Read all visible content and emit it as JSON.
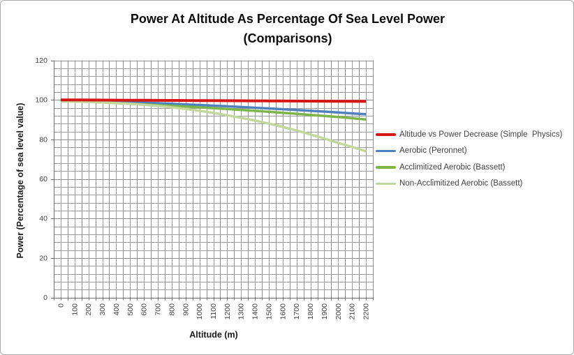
{
  "chart_data": {
    "type": "line",
    "title": "Power At Altitude As Percentage Of Sea Level Power",
    "subtitle": "(Comparisons)",
    "xlabel": "Altitude (m)",
    "ylabel": "Power (Percentage of sea level value)",
    "ylim": [
      0,
      120
    ],
    "y_major_ticks": [
      0,
      20,
      40,
      60,
      80,
      100,
      120
    ],
    "y_minor_unit": 4,
    "x_minor_per_category": 2,
    "grid": "both",
    "legend_position": "right",
    "gridline_color": "#9b9b9b",
    "gridline_major_color": "#8d8d8d",
    "axis_line_color": "#6f6f6f",
    "tick_text_color": "#3f3f3f",
    "categories": [
      "0",
      "100",
      "200",
      "300",
      "400",
      "500",
      "600",
      "700",
      "800",
      "900",
      "1000",
      "1100",
      "1200",
      "1300",
      "1400",
      "1500",
      "1600",
      "1700",
      "1800",
      "1900",
      "2000",
      "2100",
      "2200"
    ],
    "series": [
      {
        "name": "Altitude vs Power Decrease (Simple  Physics)",
        "color": "#d41616",
        "values": [
          100,
          99.96,
          99.93,
          99.89,
          99.86,
          99.82,
          99.78,
          99.75,
          99.71,
          99.68,
          99.64,
          99.6,
          99.57,
          99.53,
          99.5,
          99.46,
          99.42,
          99.39,
          99.35,
          99.32,
          99.28,
          99.24,
          99.2
        ]
      },
      {
        "name": "Aerobic (Peronnet)",
        "color": "#4f81bd",
        "values": [
          100,
          99.8,
          99.6,
          99.35,
          99.1,
          98.85,
          98.6,
          98.3,
          98.0,
          97.7,
          97.4,
          97.05,
          96.75,
          96.4,
          96.0,
          95.65,
          95.25,
          94.85,
          94.45,
          94.05,
          93.6,
          93.15,
          92.7
        ]
      },
      {
        "name": "Acclimitized Aerobic (Bassett)",
        "color": "#7cb54a",
        "values": [
          99.5,
          99.25,
          99.0,
          98.7,
          98.4,
          98.05,
          97.7,
          97.35,
          97.0,
          96.6,
          96.2,
          95.8,
          95.35,
          94.9,
          94.45,
          93.95,
          93.45,
          92.95,
          92.4,
          91.85,
          91.3,
          90.7,
          90.1
        ]
      },
      {
        "name": "Non-Acclimitized Aerobic (Bassett)",
        "color": "#c3d69b",
        "values": [
          99.2,
          99.1,
          98.9,
          98.7,
          98.4,
          98.0,
          97.5,
          96.9,
          96.2,
          95.4,
          94.5,
          93.4,
          92.2,
          90.9,
          89.5,
          88.0,
          86.3,
          84.5,
          82.5,
          80.4,
          78.2,
          76.2,
          74.0
        ]
      }
    ]
  }
}
